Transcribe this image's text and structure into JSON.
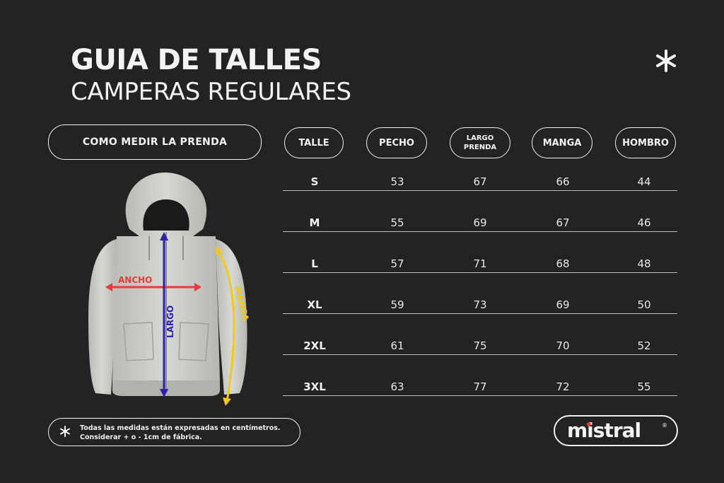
{
  "header": {
    "title": "GUIA DE TALLES",
    "subtitle": "CAMPERAS REGULARES"
  },
  "measure_button": {
    "label": "COMO MEDIR LA PRENDA"
  },
  "table": {
    "columns": [
      "TALLE",
      "PECHO",
      "LARGO PRENDA",
      "MANGA",
      "HOMBRO"
    ],
    "rows": [
      {
        "talle": "S",
        "pecho": "53",
        "largo": "67",
        "manga": "66",
        "hombro": "44"
      },
      {
        "talle": "M",
        "pecho": "55",
        "largo": "69",
        "manga": "67",
        "hombro": "46"
      },
      {
        "talle": "L",
        "pecho": "57",
        "largo": "71",
        "manga": "68",
        "hombro": "48"
      },
      {
        "talle": "XL",
        "pecho": "59",
        "largo": "73",
        "manga": "69",
        "hombro": "50"
      },
      {
        "talle": "2XL",
        "pecho": "61",
        "largo": "75",
        "manga": "70",
        "hombro": "52"
      },
      {
        "talle": "3XL",
        "pecho": "63",
        "largo": "77",
        "manga": "72",
        "hombro": "55"
      }
    ]
  },
  "diagram": {
    "ancho_label": "ANCHO",
    "largo_label": "LARGO",
    "manga_label": "MANGA",
    "colors": {
      "ancho": "#e83a3a",
      "largo": "#2f1fb0",
      "manga": "#f2c81a"
    }
  },
  "note": {
    "line1": "Todas las medidas están expresadas en centímetros.",
    "line2": "Considerar + o - 1cm de fábrica."
  },
  "brand": {
    "name": "mistral",
    "registered": "®"
  },
  "icons": {
    "decorative": "asterisk-icon"
  }
}
